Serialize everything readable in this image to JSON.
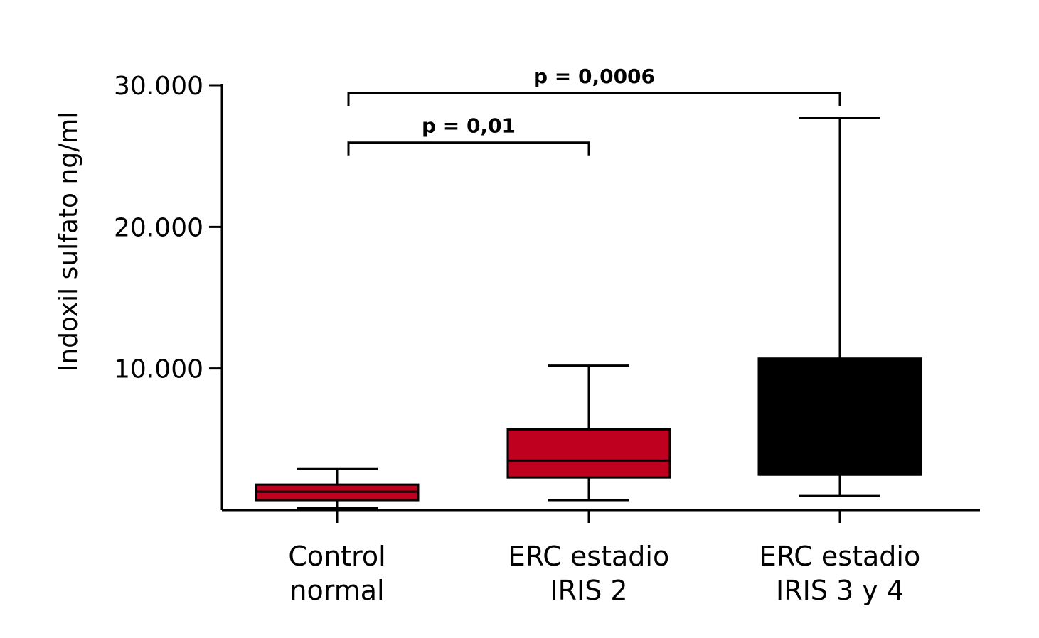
{
  "chart_data": {
    "type": "box",
    "title": "",
    "xlabel": "",
    "ylabel": "Indoxil sulfato ng/ml",
    "ylim": [
      0,
      30000
    ],
    "yticks": [
      {
        "value": 10000,
        "label": "10.000"
      },
      {
        "value": 20000,
        "label": "20.000"
      },
      {
        "value": 30000,
        "label": "30.000"
      }
    ],
    "grid": false,
    "legend": "none",
    "categories": [
      {
        "line1": "Control",
        "line2": "normal"
      },
      {
        "line1": "ERC estadio",
        "line2": "IRIS 2"
      },
      {
        "line1": "ERC estadio",
        "line2": "IRIS 3 y 4"
      }
    ],
    "boxes": [
      {
        "min": 150,
        "q1": 700,
        "median": 1300,
        "q3": 1800,
        "max": 2900,
        "color": "#c0001f"
      },
      {
        "min": 700,
        "q1": 2300,
        "median": 3500,
        "q3": 5700,
        "max": 10200,
        "color": "#c0001f"
      },
      {
        "min": 1000,
        "q1": 2500,
        "median": 2500,
        "q3": 10700,
        "max": 27700,
        "color": "#000000"
      }
    ],
    "comparisons": [
      {
        "from": 0,
        "to": 1,
        "label": "p = 0,01",
        "level": 26200
      },
      {
        "from": 0,
        "to": 2,
        "label": "p = 0,0006",
        "level": 29700
      }
    ]
  }
}
